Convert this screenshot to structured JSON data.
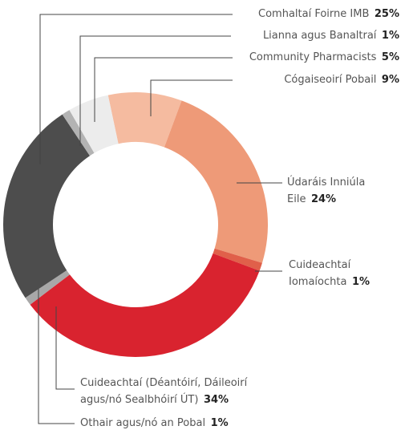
{
  "chart_data": {
    "type": "donut",
    "categories": [
      "Cógaiseoirí Pobail",
      "Údaráis Inniúla Eile",
      "Cuideachtaí Iomaíochta",
      "Cuideachtaí (Déantóirí, Dáileoirí agus/nó Sealbhóirí ÚT)",
      "Othair agus/nó an Pobal",
      "Comhaltaí Foirne IMB",
      "Lianna agus Banaltraí",
      "Community Pharmacists"
    ],
    "values": [
      9,
      24,
      1,
      34,
      1,
      25,
      1,
      5
    ],
    "value_labels": [
      "9%",
      "24%",
      "1%",
      "34%",
      "1%",
      "25%",
      "1%",
      "5%"
    ],
    "colors": [
      "#f5bba0",
      "#ee9a78",
      "#e0604a",
      "#d9232f",
      "#a8a8a8",
      "#4d4d4d",
      "#b3b3b3",
      "#ececec"
    ]
  }
}
